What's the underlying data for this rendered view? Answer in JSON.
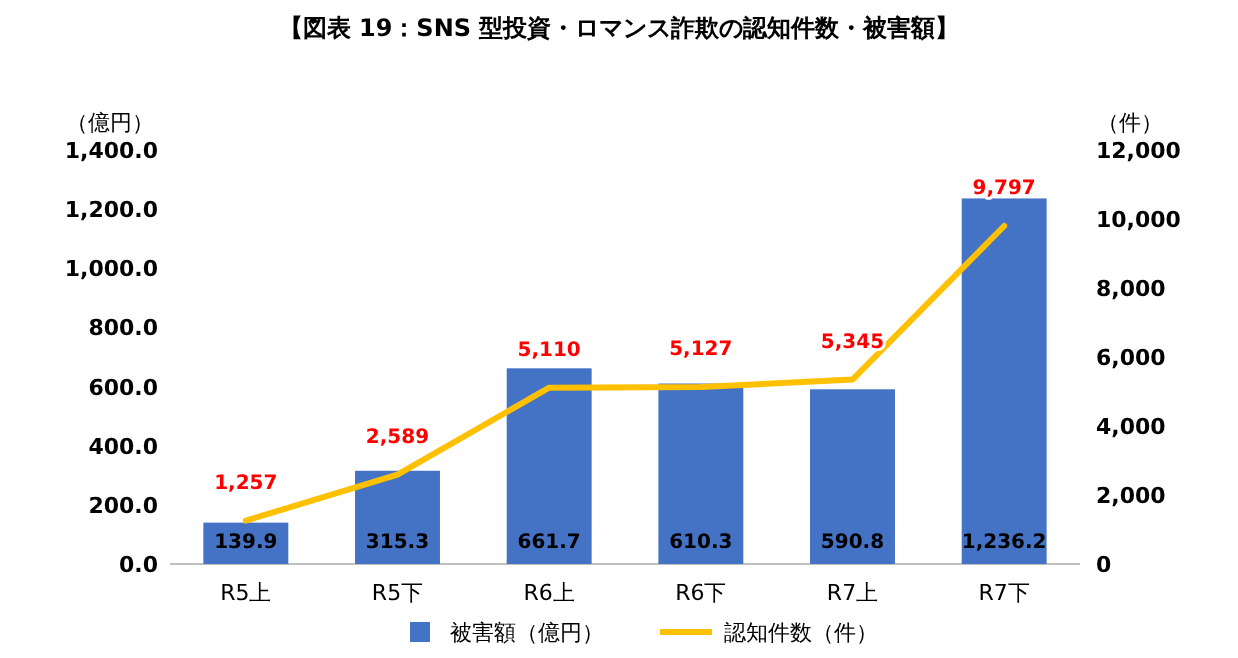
{
  "chart_data": {
    "type": "bar",
    "title": "【図表 19：SNS 型投資・ロマンス詐欺の認知件数・被害額】",
    "ylabel": "（億円）",
    "y2label": "（件）",
    "categories": [
      "R5上",
      "R5下",
      "R6上",
      "R6下",
      "R7上",
      "R7下"
    ],
    "series": [
      {
        "name": "被害額（億円）",
        "color": "#4472c4",
        "values": [
          139.9,
          315.3,
          661.7,
          610.3,
          590.8,
          1236.2
        ],
        "value_labels": [
          "139.9",
          "315.3",
          "661.7",
          "610.3",
          "590.8",
          "1,236.2"
        ]
      },
      {
        "name": "認知件数（件）",
        "type": "line",
        "axis": "y2",
        "color": "#ffc000",
        "values": [
          1257,
          2589,
          5110,
          5127,
          5345,
          9797
        ],
        "value_labels": [
          "1,257",
          "2,589",
          "5,110",
          "5,127",
          "5,345",
          "9,797"
        ]
      }
    ],
    "ylim": [
      0,
      1400
    ],
    "yticks": [
      {
        "value": 0,
        "label": "0.0"
      },
      {
        "value": 200,
        "label": "200.0"
      },
      {
        "value": 400,
        "label": "400.0"
      },
      {
        "value": 600,
        "label": "600.0"
      },
      {
        "value": 800,
        "label": "800.0"
      },
      {
        "value": 1000,
        "label": "1,000.0"
      },
      {
        "value": 1200,
        "label": "1,200.0"
      },
      {
        "value": 1400,
        "label": "1,400.0"
      }
    ],
    "y2lim": [
      0,
      12000
    ],
    "y2ticks": [
      0,
      {
        "value": 2000,
        "label": "2,000"
      },
      {
        "value": 4000,
        "label": "4,000"
      },
      {
        "value": 6000,
        "label": "6,000"
      },
      {
        "value": 8000,
        "label": "8,000"
      },
      {
        "value": 10000,
        "label": "10,000"
      },
      {
        "value": 12000,
        "label": "12,000"
      }
    ],
    "legend": "bottom",
    "grid": false,
    "marker": "none",
    "line_style": "solid"
  }
}
